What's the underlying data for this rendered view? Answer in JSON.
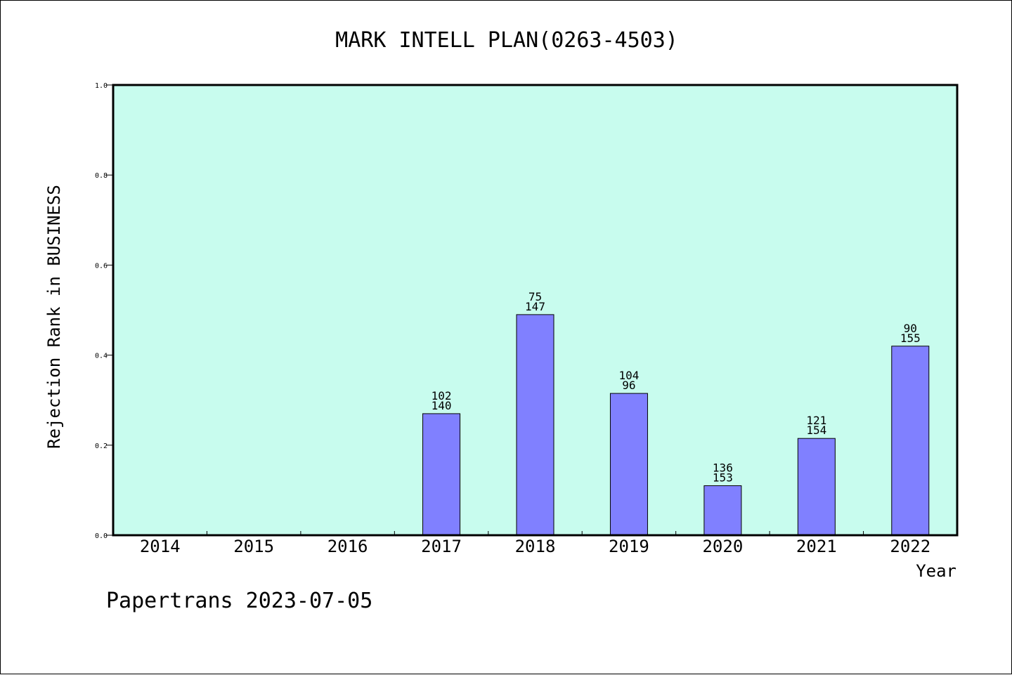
{
  "chart_data": {
    "type": "bar",
    "title": "MARK INTELL PLAN(0263-4503)",
    "xlabel": "Year",
    "ylabel": "Rejection Rank in BUSINESS",
    "ylim": [
      0,
      1.0
    ],
    "yticks": [
      "0.0",
      "0.2",
      "0.4",
      "0.6",
      "0.8",
      "1.0"
    ],
    "categories": [
      "2014",
      "2015",
      "2016",
      "2017",
      "2018",
      "2019",
      "2020",
      "2021",
      "2022"
    ],
    "values": [
      null,
      null,
      null,
      0.27,
      0.49,
      0.315,
      0.11,
      0.215,
      0.42
    ],
    "bar_labels": [
      null,
      null,
      null,
      [
        "102",
        "140"
      ],
      [
        "75",
        "147"
      ],
      [
        "104",
        "96"
      ],
      [
        "136",
        "153"
      ],
      [
        "121",
        "154"
      ],
      [
        "90",
        "155"
      ]
    ],
    "grid": false,
    "colors": {
      "plot_background": "#c8fcee",
      "bar_fill": "#8080ff",
      "bar_stroke": "#000000"
    }
  },
  "footer": {
    "text": "Papertrans 2023-07-05"
  }
}
